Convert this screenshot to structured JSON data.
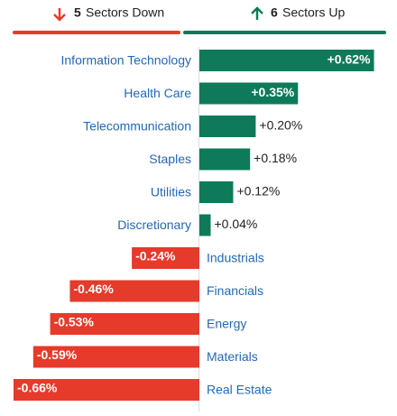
{
  "header": {
    "down": {
      "count": 5,
      "label": "Sectors Down"
    },
    "up": {
      "count": 6,
      "label": "Sectors Up"
    }
  },
  "chart_data": {
    "type": "diverging-bar",
    "categories": [
      "Information Technology",
      "Health Care",
      "Telecommunication",
      "Staples",
      "Utilities",
      "Discretionary",
      "Industrials",
      "Financials",
      "Energy",
      "Materials",
      "Real Estate"
    ],
    "values": [
      0.62,
      0.35,
      0.2,
      0.18,
      0.12,
      0.04,
      -0.24,
      -0.46,
      -0.53,
      -0.59,
      -0.66
    ],
    "value_labels": [
      "+0.62%",
      "+0.35%",
      "+0.20%",
      "+0.18%",
      "+0.12%",
      "+0.04%",
      "-0.24%",
      "-0.46%",
      "-0.53%",
      "-0.59%",
      "-0.66%"
    ],
    "positive_color": "#0e7a5a",
    "negative_color": "#e63a2b"
  }
}
